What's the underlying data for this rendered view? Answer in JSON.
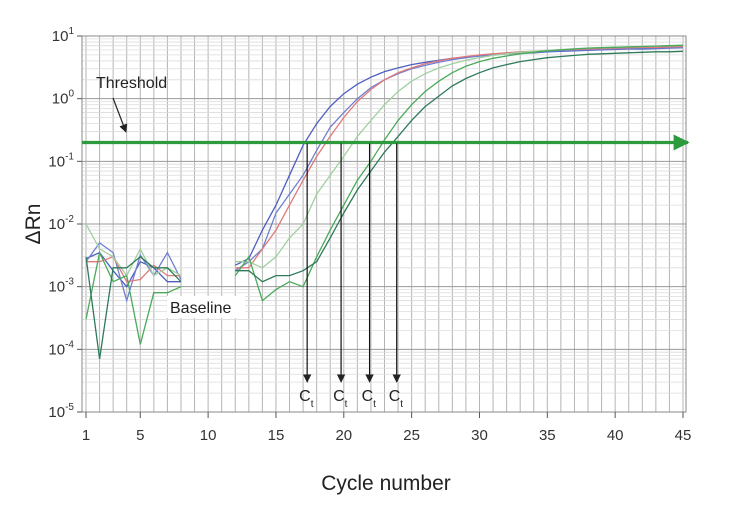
{
  "chart_data": {
    "type": "line",
    "xlabel": "Cycle number",
    "ylabel": "ΔRn",
    "y_scale": "log",
    "xlim": [
      1,
      45
    ],
    "ylim": [
      1e-05,
      10
    ],
    "grid": true,
    "x_ticks": [
      1,
      5,
      10,
      15,
      20,
      25,
      30,
      35,
      40,
      45
    ],
    "y_ticks": [
      {
        "value": 10,
        "base": "10",
        "exp": "1"
      },
      {
        "value": 1,
        "base": "10",
        "exp": "0"
      },
      {
        "value": 0.1,
        "base": "10",
        "exp": "-1"
      },
      {
        "value": 0.01,
        "base": "10",
        "exp": "-2"
      },
      {
        "value": 0.001,
        "base": "10",
        "exp": "-3"
      },
      {
        "value": 0.0001,
        "base": "10",
        "exp": "-4"
      },
      {
        "value": 1e-05,
        "base": "10",
        "exp": "-5"
      }
    ],
    "threshold": {
      "value": 0.2,
      "label": "Threshold",
      "color": "#2e9a3e"
    },
    "baseline_label": "Baseline",
    "ct_label": {
      "base": "C",
      "sub": "t"
    },
    "ct_values": [
      17.3,
      19.8,
      21.9,
      23.9
    ],
    "series": [
      {
        "color": "#4f5fc0",
        "x": [
          1,
          2,
          3,
          4,
          5,
          6,
          7,
          8,
          12,
          13,
          14,
          15,
          16,
          17,
          18,
          19,
          20,
          21,
          22,
          23,
          24,
          25,
          26,
          27,
          28,
          29,
          30,
          31,
          32,
          33,
          34,
          35,
          36,
          37,
          38,
          39,
          40,
          41,
          42,
          43,
          44,
          45
        ],
        "y": [
          0.0028,
          0.0035,
          0.0018,
          0.001,
          0.0025,
          0.002,
          0.0012,
          0.0012,
          0.0022,
          0.0028,
          0.008,
          0.02,
          0.06,
          0.18,
          0.4,
          0.75,
          1.2,
          1.7,
          2.2,
          2.7,
          3.1,
          3.5,
          3.8,
          4.1,
          4.4,
          4.6,
          4.8,
          5.0,
          5.2,
          5.3,
          5.4,
          5.6,
          5.7,
          5.8,
          5.9,
          6.0,
          6.1,
          6.2,
          6.2,
          6.3,
          6.4,
          6.5
        ]
      },
      {
        "color": "#6f7fd0",
        "x": [
          1,
          2,
          3,
          4,
          5,
          6,
          7,
          8,
          12,
          13,
          14,
          15,
          16,
          17,
          18,
          19,
          20,
          21,
          22,
          23,
          24,
          25,
          26,
          27,
          28,
          29,
          30,
          31,
          32,
          33,
          34,
          35,
          36,
          37,
          38,
          39,
          40,
          41,
          42,
          43,
          44,
          45
        ],
        "y": [
          0.0025,
          0.005,
          0.0035,
          0.0006,
          0.0032,
          0.0015,
          0.0035,
          0.0013,
          0.0018,
          0.0025,
          0.004,
          0.015,
          0.03,
          0.06,
          0.15,
          0.35,
          0.6,
          1.0,
          1.5,
          2.0,
          2.5,
          3.0,
          3.4,
          3.8,
          4.2,
          4.5,
          4.8,
          5.0,
          5.2,
          5.4,
          5.5,
          5.7,
          5.8,
          5.9,
          6.0,
          6.1,
          6.2,
          6.3,
          6.4,
          6.4,
          6.5,
          6.6
        ]
      },
      {
        "color": "#e07a7a",
        "x": [
          1,
          2,
          3,
          4,
          5,
          6,
          7,
          8,
          12,
          13,
          14,
          15,
          16,
          17,
          18,
          19,
          20,
          21,
          22,
          23,
          24,
          25,
          26,
          27,
          28,
          29,
          30,
          31,
          32,
          33,
          34,
          35,
          36,
          37,
          38,
          39,
          40,
          41,
          42,
          43,
          44,
          45
        ],
        "y": [
          0.0025,
          0.0025,
          0.003,
          0.0012,
          0.0013,
          0.0022,
          0.0015,
          0.0015,
          0.002,
          0.002,
          0.004,
          0.008,
          0.02,
          0.05,
          0.12,
          0.25,
          0.5,
          0.9,
          1.4,
          2.0,
          2.6,
          3.1,
          3.6,
          4.0,
          4.4,
          4.7,
          5.0,
          5.2,
          5.4,
          5.6,
          5.7,
          5.9,
          6.0,
          6.1,
          6.2,
          6.3,
          6.4,
          6.5,
          6.6,
          6.6,
          6.7,
          6.8
        ]
      },
      {
        "color": "#a0d0a0",
        "x": [
          1,
          2,
          3,
          4,
          5,
          6,
          7,
          8,
          12,
          13,
          14,
          15,
          16,
          17,
          18,
          19,
          20,
          21,
          22,
          23,
          24,
          25,
          26,
          27,
          28,
          29,
          30,
          31,
          32,
          33,
          34,
          35,
          36,
          37,
          38,
          39,
          40,
          41,
          42,
          43,
          44,
          45
        ],
        "y": [
          0.01,
          0.004,
          0.003,
          0.0015,
          0.004,
          0.0015,
          0.002,
          0.0015,
          0.0025,
          0.0025,
          0.002,
          0.003,
          0.006,
          0.01,
          0.03,
          0.06,
          0.12,
          0.25,
          0.45,
          0.8,
          1.3,
          1.9,
          2.5,
          3.1,
          3.6,
          4.1,
          4.5,
          4.9,
          5.2,
          5.5,
          5.7,
          5.9,
          6.1,
          6.3,
          6.4,
          6.5,
          6.6,
          6.7,
          6.8,
          6.9,
          7.0,
          7.1
        ]
      },
      {
        "color": "#4aaa5a",
        "x": [
          1,
          2,
          3,
          4,
          5,
          6,
          7,
          8,
          12,
          13,
          14,
          15,
          16,
          17,
          18,
          19,
          20,
          21,
          22,
          23,
          24,
          25,
          26,
          27,
          28,
          29,
          30,
          31,
          32,
          33,
          34,
          35,
          36,
          37,
          38,
          39,
          40,
          41,
          42,
          43,
          44,
          45
        ],
        "y": [
          0.0003,
          0.0035,
          0.0012,
          0.0015,
          0.00012,
          0.0008,
          0.0008,
          0.001,
          0.0015,
          0.003,
          0.0006,
          0.0009,
          0.0012,
          0.001,
          0.003,
          0.008,
          0.02,
          0.05,
          0.1,
          0.22,
          0.45,
          0.8,
          1.3,
          1.9,
          2.6,
          3.3,
          3.9,
          4.4,
          4.8,
          5.2,
          5.5,
          5.8,
          6.0,
          6.2,
          6.4,
          6.5,
          6.6,
          6.7,
          6.8,
          6.9,
          7.0,
          7.1
        ]
      },
      {
        "color": "#2e7a5a",
        "x": [
          1,
          2,
          3,
          4,
          5,
          6,
          7,
          8,
          12,
          13,
          14,
          15,
          16,
          17,
          18,
          19,
          20,
          21,
          22,
          23,
          24,
          25,
          26,
          27,
          28,
          29,
          30,
          31,
          32,
          33,
          34,
          35,
          36,
          37,
          38,
          39,
          40,
          41,
          42,
          43,
          44,
          45
        ],
        "y": [
          0.003,
          7e-05,
          0.002,
          0.002,
          0.003,
          0.002,
          0.002,
          0.0012,
          0.0018,
          0.0018,
          0.0012,
          0.0015,
          0.0015,
          0.0018,
          0.0025,
          0.006,
          0.015,
          0.035,
          0.07,
          0.14,
          0.25,
          0.45,
          0.75,
          1.1,
          1.6,
          2.1,
          2.6,
          3.1,
          3.5,
          3.9,
          4.2,
          4.5,
          4.7,
          4.9,
          5.1,
          5.2,
          5.3,
          5.4,
          5.5,
          5.6,
          5.6,
          5.7
        ]
      }
    ]
  }
}
